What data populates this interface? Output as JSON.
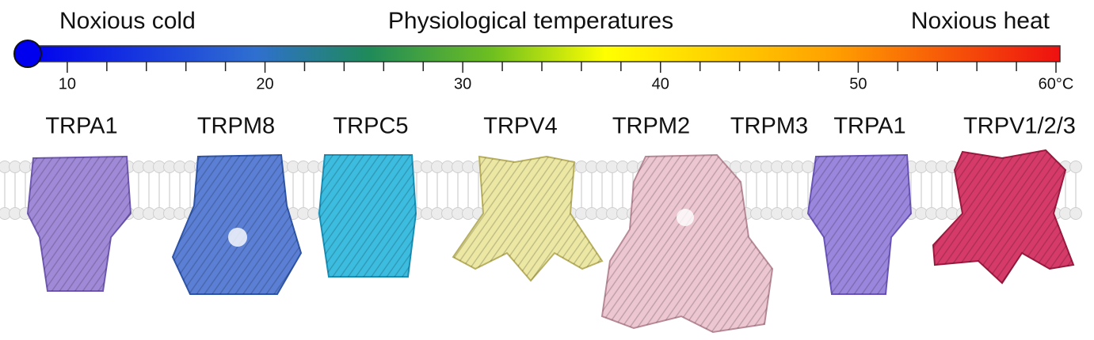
{
  "header": {
    "left": "Noxious cold",
    "center": "Physiological temperatures",
    "right": "Noxious heat"
  },
  "scale": {
    "range": [
      8,
      60
    ],
    "ticks": [
      10,
      20,
      30,
      40,
      50,
      {
        "value": 60,
        "label": "60°C"
      }
    ],
    "minor_ticks": [
      12,
      14,
      16,
      18,
      22,
      24,
      26,
      28,
      32,
      34,
      36,
      38,
      42,
      44,
      46,
      48,
      52,
      54,
      56,
      58
    ]
  },
  "channels": [
    "TRPA1",
    "TRPM8",
    "TRPC5",
    "TRPV4",
    "TRPM2",
    "TRPM3",
    "TRPA1",
    "TRPV1/2/3"
  ]
}
